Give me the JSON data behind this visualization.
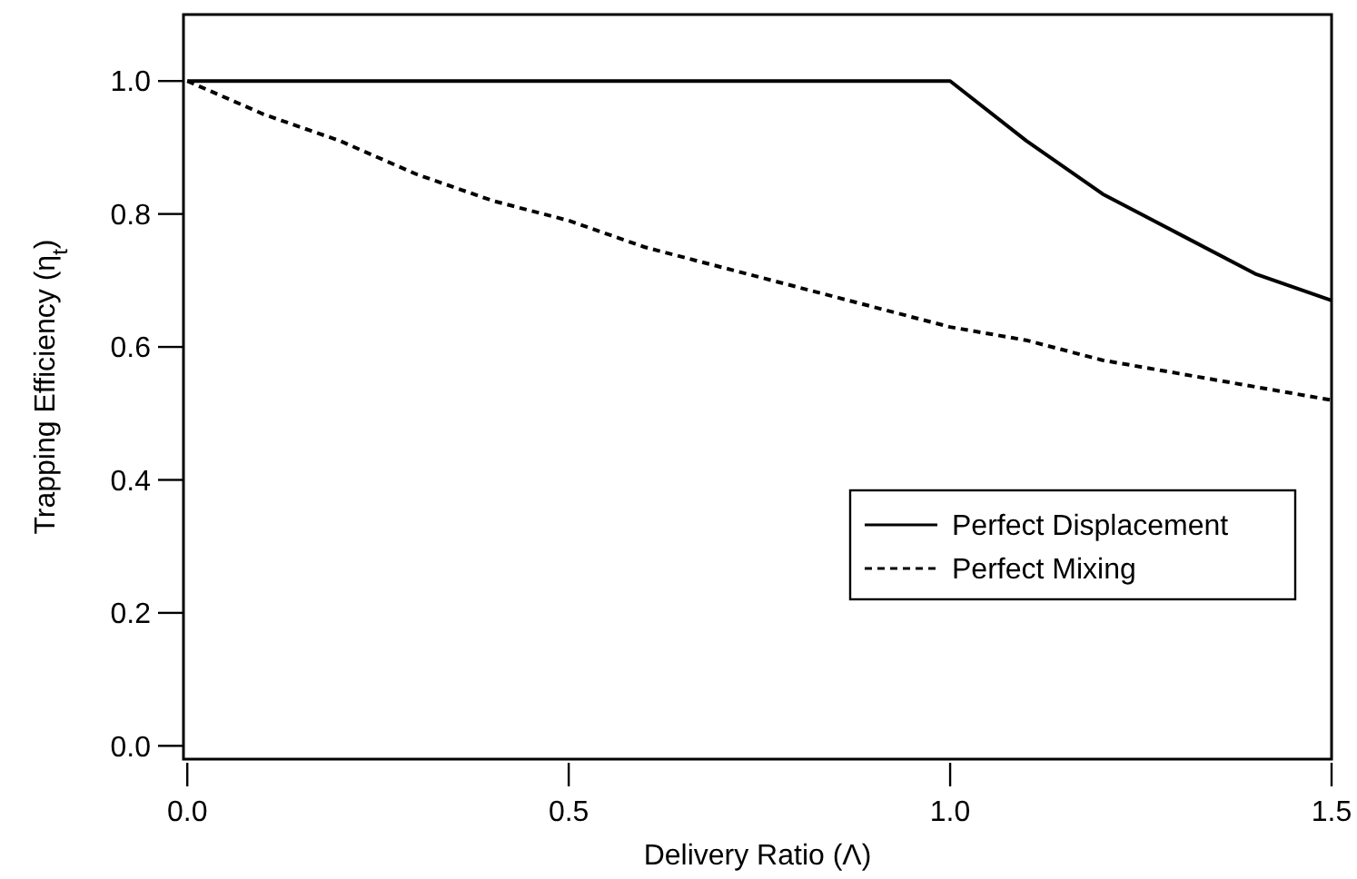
{
  "chart_data": {
    "type": "line",
    "xlabel": "Delivery Ratio (Λ)",
    "ylabel": "Trapping Efficiency (η$_{t}$)",
    "xlim": [
      -0.005,
      1.5
    ],
    "ylim": [
      -0.02,
      1.1
    ],
    "xticks": [
      {
        "value": 0,
        "label": "0.0"
      },
      0.5,
      {
        "value": 1,
        "label": "1.0"
      },
      1.5
    ],
    "yticks": [
      {
        "value": 0,
        "label": "0.0"
      },
      0.2,
      0.4,
      0.6,
      0.8,
      {
        "value": 1,
        "label": "1.0"
      }
    ],
    "grid": false,
    "legend": "bottom right",
    "series": [
      {
        "name": "Perfect Displacement",
        "color": "#000000",
        "line_style": "solid",
        "x": [
          0,
          1,
          1.1,
          1.2,
          1.3,
          1.4,
          1.5
        ],
        "values": [
          1,
          1,
          0.91,
          0.83,
          0.77,
          0.71,
          0.67
        ]
      },
      {
        "name": "Perfect Mixing",
        "color": "#000000",
        "line_style": "dashed",
        "x": [
          0,
          0.1,
          0.2,
          0.3,
          0.4,
          0.5,
          0.6,
          0.7,
          0.8,
          0.9,
          1,
          1.1,
          1.2,
          1.3,
          1.4,
          1.5
        ],
        "values": [
          1,
          0.95,
          0.91,
          0.86,
          0.82,
          0.79,
          0.75,
          0.72,
          0.69,
          0.66,
          0.63,
          0.61,
          0.58,
          0.56,
          0.54,
          0.52
        ]
      }
    ]
  }
}
